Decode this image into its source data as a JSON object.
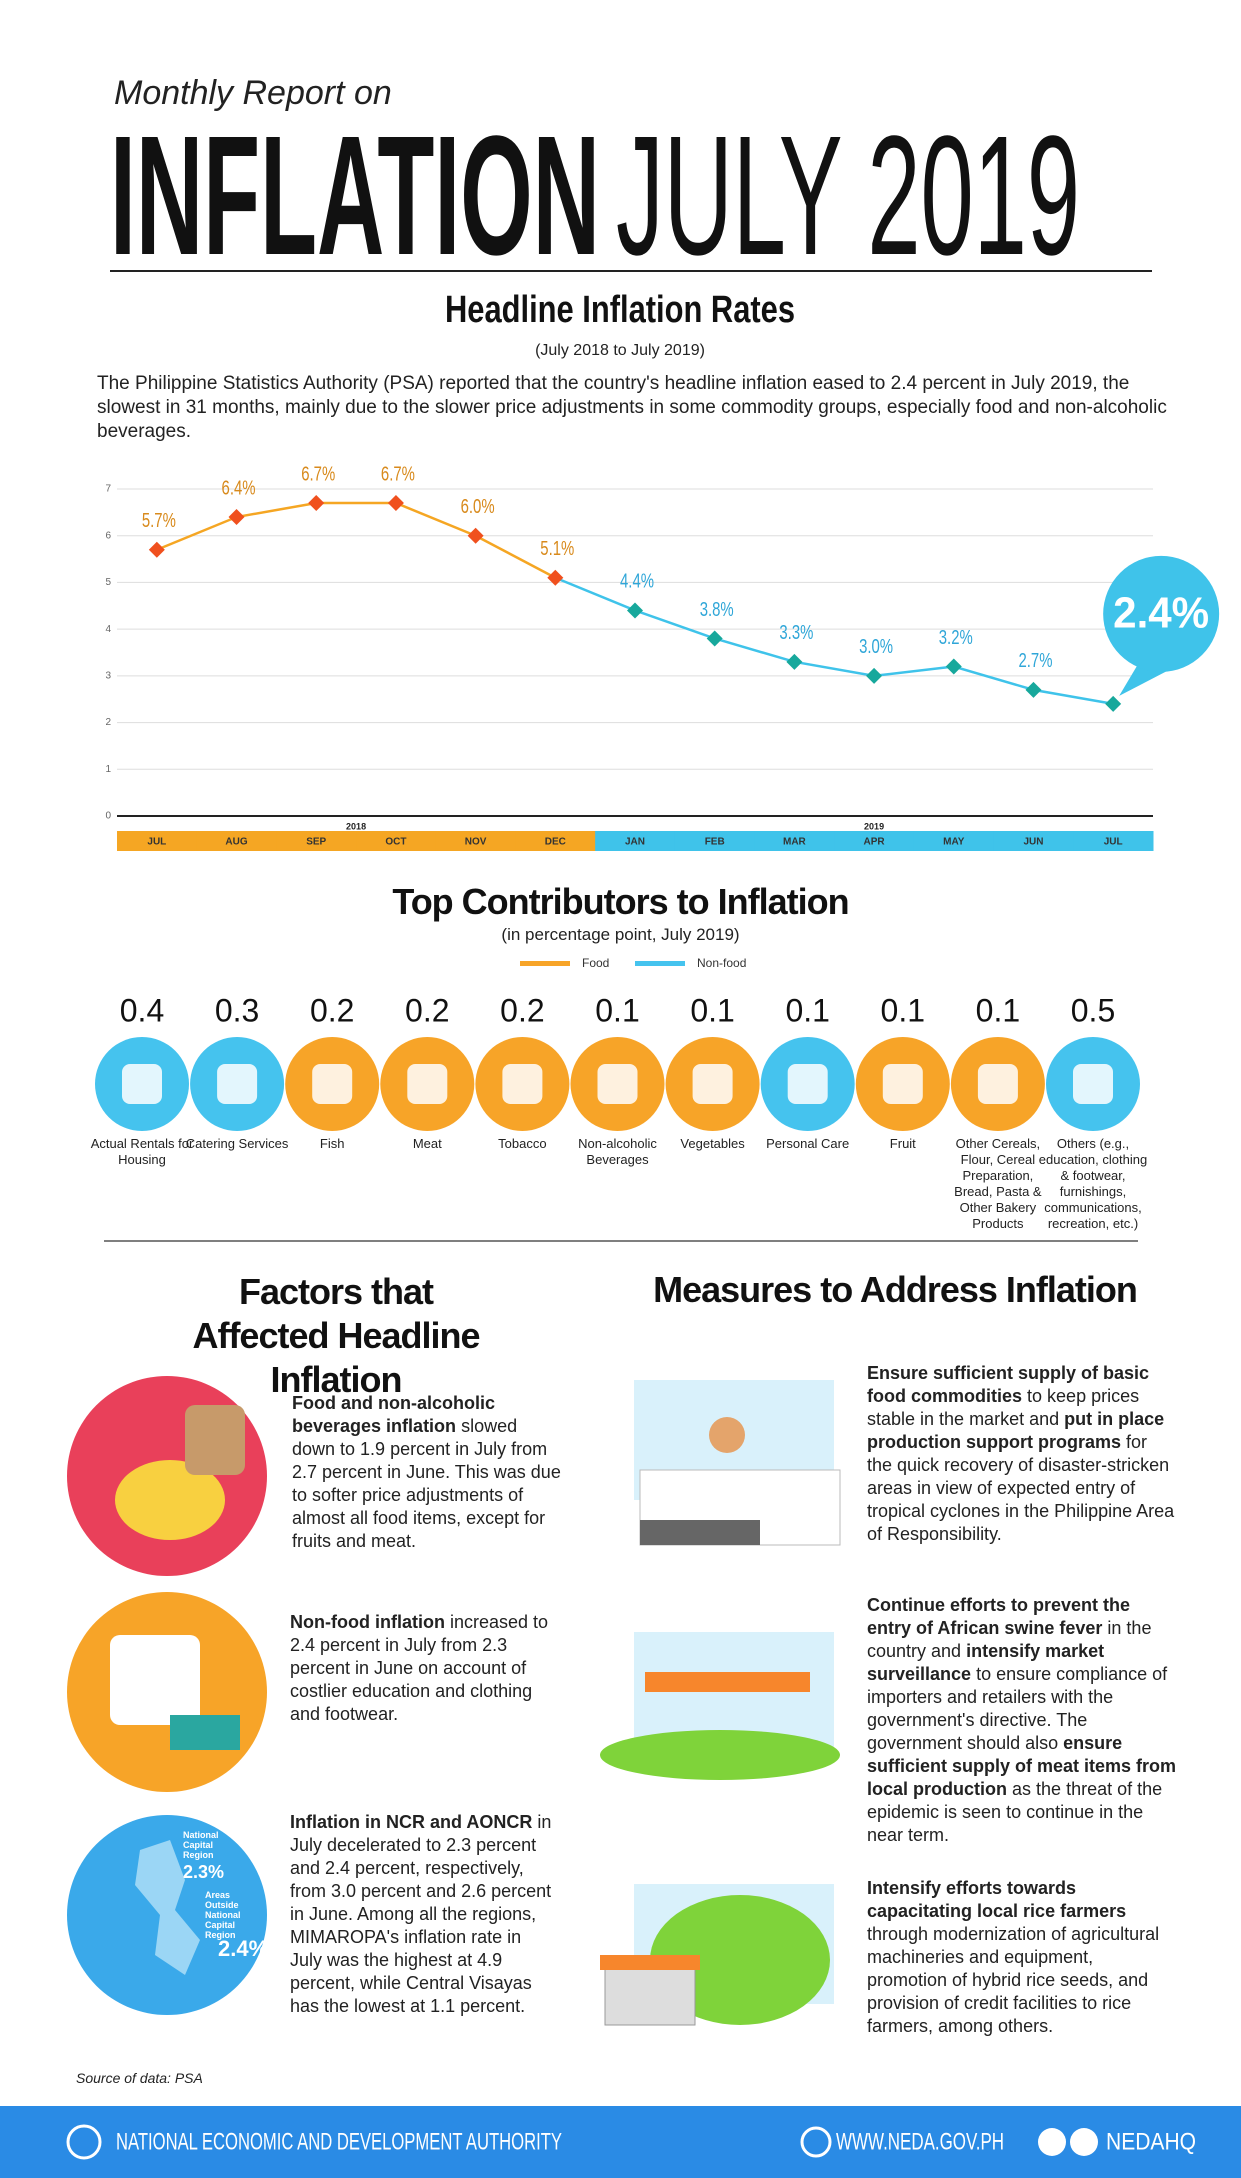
{
  "header": {
    "kicker": "Monthly Report on",
    "title_bold": "INFLATION",
    "title_light": "JULY 2019"
  },
  "chart_data": {
    "type": "line",
    "title": "Headline Inflation Rates",
    "subtitle": "(July 2018 to July 2019)",
    "description": "The Philippine Statistics Authority (PSA) reported that the country's headline inflation eased to 2.4 percent in July 2019, the slowest in 31 months, mainly due to the slower price adjustments in some commodity groups, especially food and non-alcoholic beverages.",
    "ylim": [
      0,
      7
    ],
    "yticks": [
      0,
      1,
      2,
      3,
      4,
      5,
      6,
      7
    ],
    "grid": true,
    "series": [
      {
        "name": "2018",
        "color": "#f5a623",
        "marker_color": "#f0501e",
        "categories": [
          "JUL",
          "AUG",
          "SEP",
          "OCT",
          "NOV",
          "DEC"
        ],
        "values": [
          5.7,
          6.4,
          6.7,
          6.7,
          6.0,
          5.1
        ],
        "value_labels": [
          "5.7%",
          "6.4%",
          "6.7%",
          "6.7%",
          "6.0%",
          "5.1%"
        ]
      },
      {
        "name": "2019",
        "color": "#3fc3ea",
        "marker_color": "#17a89c",
        "categories": [
          "JAN",
          "FEB",
          "MAR",
          "APR",
          "MAY",
          "JUN",
          "JUL"
        ],
        "values": [
          4.4,
          3.8,
          3.3,
          3.0,
          3.2,
          2.7,
          2.4
        ],
        "value_labels": [
          "4.4%",
          "3.8%",
          "3.3%",
          "3.0%",
          "3.2%",
          "2.7%",
          "2.4%"
        ]
      }
    ]
  },
  "contributors": {
    "title": "Top Contributors to Inflation",
    "subtitle": "(in percentage point, July 2019)",
    "legend": [
      {
        "name": "Food",
        "color": "#f7a428"
      },
      {
        "name": "Non-food",
        "color": "#45c3ee"
      }
    ],
    "items": [
      {
        "value": 0.4,
        "label": "Actual Rentals for Housing",
        "color": "#45c3ee"
      },
      {
        "value": 0.3,
        "label": "Catering Services",
        "color": "#45c3ee"
      },
      {
        "value": 0.2,
        "label": "Fish",
        "color": "#f7a428"
      },
      {
        "value": 0.2,
        "label": "Meat",
        "color": "#f7a428"
      },
      {
        "value": 0.2,
        "label": "Tobacco",
        "color": "#f7a428"
      },
      {
        "value": 0.1,
        "label": "Non-alcoholic Beverages",
        "color": "#f7a428"
      },
      {
        "value": 0.1,
        "label": "Vegetables",
        "color": "#f7a428"
      },
      {
        "value": 0.1,
        "label": "Personal Care",
        "color": "#45c3ee"
      },
      {
        "value": 0.1,
        "label": "Fruit",
        "color": "#f7a428"
      },
      {
        "value": 0.1,
        "label": "Other Cereals, Flour, Cereal Preparation, Bread, Pasta & Other Bakery Products",
        "color": "#f7a428"
      },
      {
        "value": 0.5,
        "label": "Others (e.g., education, clothing & footwear, furnishings, communications, recreation, etc.)",
        "color": "#45c3ee"
      }
    ]
  },
  "factors": {
    "title": "Factors that Affected Headline Inflation",
    "items": [
      {
        "bold": "Food and non-alcoholic beverages inflation",
        "text": "slowed down to 1.9 percent in July from 2.7 percent in June. This was due to softer price adjustments of almost all food items, except for fruits and meat."
      },
      {
        "bold": "Non-food inflation",
        "text": "increased to 2.4 percent in July from 2.3 percent in June on account of costlier education and clothing and footwear."
      },
      {
        "bold": "Inflation in NCR and AONCR",
        "text": "in July decelerated to 2.3 percent and 2.4 percent, respectively, from 3.0 percent and 2.6 percent in June. Among all the regions, MIMAROPA's inflation rate in July was the highest at 4.9 percent, while Central Visayas has the lowest at 1.1 percent."
      }
    ],
    "map_labels": [
      "National Capital Region",
      "2.3%",
      "Areas Outside National Capital Region",
      "2.4%"
    ]
  },
  "measures": {
    "title": "Measures to Address Inflation",
    "items": [
      {
        "runs": [
          {
            "text": "Ensure sufficient supply of basic food commodities",
            "bold": true
          },
          {
            "text": "to keep prices stable in the market and",
            "bold": false
          },
          {
            "text": "put in place production support programs",
            "bold": true
          },
          {
            "text": "for the quick recovery of disaster-stricken areas in view of expected entry of tropical cyclones in the Philippine Area of Responsibility.",
            "bold": false
          }
        ]
      },
      {
        "runs": [
          {
            "text": "Continue efforts to prevent the entry of African swine fever",
            "bold": true
          },
          {
            "text": "in the country and",
            "bold": false
          },
          {
            "text": "intensify market surveillance",
            "bold": true
          },
          {
            "text": "to ensure compliance of importers and retailers with the government's directive. The government should also",
            "bold": false
          },
          {
            "text": "ensure sufficient supply of meat items from local production",
            "bold": true
          },
          {
            "text": "as the threat of the epidemic is seen to continue in the near term.",
            "bold": false
          }
        ]
      },
      {
        "runs": [
          {
            "text": "Intensify efforts towards capacitating local rice farmers",
            "bold": true
          },
          {
            "text": "through modernization of agricultural machineries and equipment, promotion of hybrid rice seeds, and provision of credit facilities to rice farmers, among others.",
            "bold": false
          }
        ]
      }
    ]
  },
  "source": "Source of data: PSA",
  "footer": {
    "agency": "NATIONAL ECONOMIC AND DEVELOPMENT AUTHORITY",
    "website": "WWW.NEDA.GOV.PH",
    "handle": "NEDAHQ"
  }
}
